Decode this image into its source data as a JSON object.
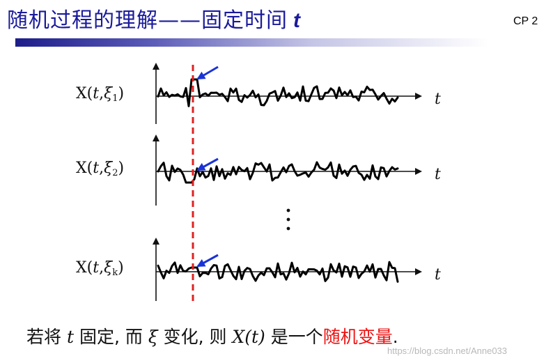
{
  "slide": {
    "title": "随机过程的理解——固定时间",
    "title_var": "t",
    "page_label": "CP 2",
    "accent_color": "#1a1a9c"
  },
  "diagram": {
    "rows": [
      {
        "label_prefix": "X(",
        "label_t": "t",
        "label_sep": ",",
        "label_xi": "ξ",
        "label_sub": "1",
        "label_suffix": ")",
        "axis_label": "t"
      },
      {
        "label_prefix": "X(",
        "label_t": "t",
        "label_sep": ",",
        "label_xi": "ξ",
        "label_sub": "2",
        "label_suffix": ")",
        "axis_label": "t"
      },
      {
        "label_prefix": "X(",
        "label_t": "t",
        "label_sep": ",",
        "label_xi": "ξ",
        "label_sub": "k",
        "label_suffix": ")",
        "axis_label": "t"
      }
    ],
    "fixed_time_line_color": "#e02020",
    "arrow_color": "#1a33d6"
  },
  "caption": {
    "p1": "若将",
    "t": "t",
    "p2": "固定, 而",
    "xi": "ξ",
    "p3": "变化, 则",
    "Xt": "X(t)",
    "p4": "是一个",
    "highlight": "随机变量",
    "end": ".",
    "highlight_color": "#ee1111"
  },
  "watermark": "https://blog.csdn.net/Anne033"
}
